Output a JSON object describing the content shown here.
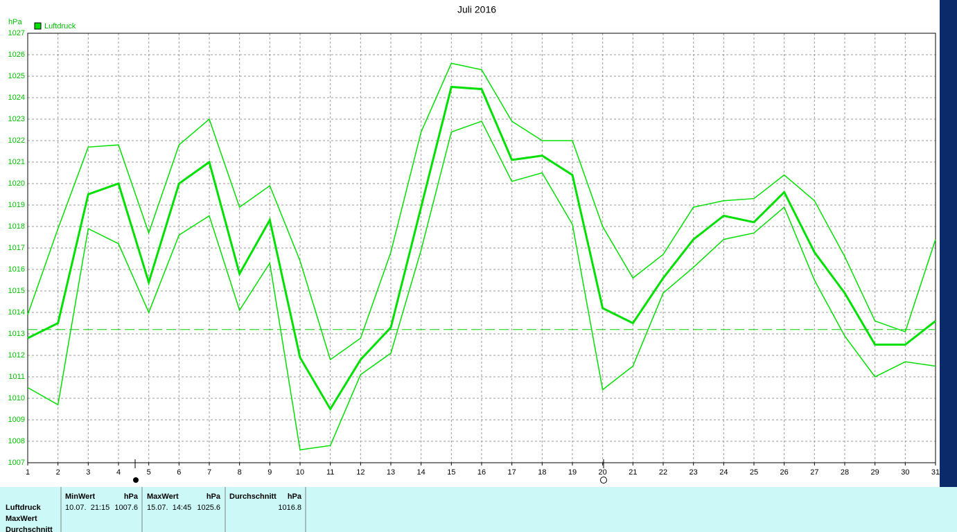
{
  "chart_data": {
    "type": "line",
    "title": "Juli 2016",
    "y_unit": "hPa",
    "x": [
      1,
      2,
      3,
      4,
      5,
      6,
      7,
      8,
      9,
      10,
      11,
      12,
      13,
      14,
      15,
      16,
      17,
      18,
      19,
      20,
      21,
      22,
      23,
      24,
      25,
      26,
      27,
      28,
      29,
      30,
      31
    ],
    "xlim": [
      1,
      31
    ],
    "xticks": [
      1,
      2,
      3,
      4,
      5,
      6,
      7,
      8,
      9,
      10,
      11,
      12,
      13,
      14,
      15,
      16,
      17,
      18,
      19,
      20,
      21,
      22,
      23,
      24,
      25,
      26,
      27,
      28,
      29,
      30,
      31
    ],
    "ylim": [
      1007,
      1027
    ],
    "yticks": [
      1007,
      1008,
      1009,
      1010,
      1011,
      1012,
      1013,
      1014,
      1015,
      1016,
      1017,
      1018,
      1019,
      1020,
      1021,
      1022,
      1023,
      1024,
      1025,
      1026,
      1027
    ],
    "grid": true,
    "series": [
      {
        "name": "Luftdruck",
        "color": "#00e000",
        "values": [
          1012.8,
          1013.5,
          1019.5,
          1020.0,
          1015.4,
          1020.0,
          1021.0,
          1015.8,
          1018.3,
          1011.9,
          1009.5,
          1011.8,
          1013.3,
          1018.9,
          1024.5,
          1024.4,
          1021.1,
          1021.3,
          1020.4,
          1014.2,
          1013.5,
          1015.6,
          1017.4,
          1018.5,
          1018.2,
          1019.6,
          1016.8,
          1014.9,
          1012.5,
          1012.5,
          1013.6
        ],
        "max": [
          1013.9,
          1017.9,
          1021.7,
          1021.8,
          1017.7,
          1021.8,
          1023.0,
          1018.9,
          1019.9,
          1016.4,
          1011.8,
          1012.8,
          1016.8,
          1022.4,
          1025.6,
          1025.3,
          1022.9,
          1022.0,
          1022.0,
          1018.0,
          1015.6,
          1016.7,
          1018.9,
          1019.2,
          1019.3,
          1020.4,
          1019.2,
          1016.6,
          1013.6,
          1013.1,
          1017.4
        ],
        "min": [
          1010.5,
          1009.7,
          1017.9,
          1017.2,
          1014.0,
          1017.6,
          1018.5,
          1014.1,
          1016.3,
          1007.6,
          1007.8,
          1011.1,
          1012.1,
          1016.9,
          1022.4,
          1022.9,
          1020.1,
          1020.5,
          1018.1,
          1010.4,
          1011.5,
          1014.9,
          1016.1,
          1017.4,
          1017.7,
          1018.9,
          1015.5,
          1012.9,
          1011.0,
          1011.7,
          1011.5
        ]
      }
    ],
    "reference_line": 1013.2
  },
  "stats_table": {
    "header": [
      [
        "MinWert",
        "hPa"
      ],
      [
        "MaxWert",
        "hPa"
      ],
      [
        "Durchschnitt",
        "hPa"
      ]
    ],
    "row_labels": [
      "Luftdruck",
      "MaxWert",
      "Durchschnitt"
    ],
    "values": [
      [
        "10.07.  21:15",
        "1007.6"
      ],
      [
        "15.07.  14:45",
        "1025.6"
      ],
      [
        "1016.8"
      ]
    ]
  }
}
